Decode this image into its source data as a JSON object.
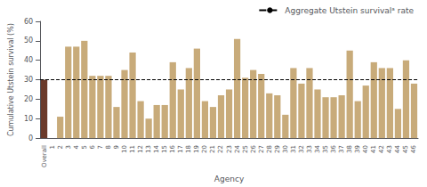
{
  "chart_data": {
    "type": "bar",
    "categories": [
      "Overall",
      "1",
      "2",
      "3",
      "4",
      "5",
      "6",
      "7",
      "8",
      "9",
      "10",
      "11",
      "12",
      "13",
      "14",
      "15",
      "16",
      "17",
      "18",
      "19",
      "20",
      "21",
      "22",
      "23",
      "24",
      "25",
      "26",
      "27",
      "28",
      "29",
      "30",
      "31",
      "32",
      "33",
      "34",
      "35",
      "36",
      "37",
      "38",
      "39",
      "40",
      "41",
      "42",
      "43",
      "44",
      "45",
      "46"
    ],
    "values": [
      30,
      0,
      11,
      47,
      47,
      50,
      32,
      32,
      32,
      16,
      35,
      44,
      19,
      10,
      17,
      17,
      39,
      25,
      36,
      46,
      19,
      16,
      22,
      25,
      51,
      31,
      35,
      33,
      23,
      22,
      12,
      36,
      28,
      36,
      25,
      21,
      21,
      22,
      45,
      19,
      27,
      39,
      36,
      36,
      15,
      40,
      28
    ],
    "colors": [
      "#6B3A2A",
      "#C8AB7A",
      "#C8AB7A",
      "#C8AB7A",
      "#C8AB7A",
      "#C8AB7A",
      "#C8AB7A",
      "#C8AB7A",
      "#C8AB7A",
      "#C8AB7A",
      "#C8AB7A",
      "#C8AB7A",
      "#C8AB7A",
      "#C8AB7A",
      "#C8AB7A",
      "#C8AB7A",
      "#C8AB7A",
      "#C8AB7A",
      "#C8AB7A",
      "#C8AB7A",
      "#C8AB7A",
      "#C8AB7A",
      "#C8AB7A",
      "#C8AB7A",
      "#C8AB7A",
      "#C8AB7A",
      "#C8AB7A",
      "#C8AB7A",
      "#C8AB7A",
      "#C8AB7A",
      "#C8AB7A",
      "#C8AB7A",
      "#C8AB7A",
      "#C8AB7A",
      "#C8AB7A",
      "#C8AB7A",
      "#C8AB7A",
      "#C8AB7A",
      "#C8AB7A",
      "#C8AB7A",
      "#C8AB7A",
      "#C8AB7A",
      "#C8AB7A",
      "#C8AB7A",
      "#C8AB7A",
      "#C8AB7A",
      "#C8AB7A"
    ],
    "xlabel": "Agency",
    "ylabel": "Cumulative Utstein survival (%)",
    "ylim": [
      0,
      60
    ],
    "yticks": [
      0,
      10,
      20,
      30,
      40,
      50,
      60
    ],
    "hline": {
      "value": 30,
      "label": "Aggregate Utstein survivalᵃ rate",
      "color": "#000000",
      "line_style": "dashed"
    },
    "legend": "upper right",
    "grid": false
  }
}
